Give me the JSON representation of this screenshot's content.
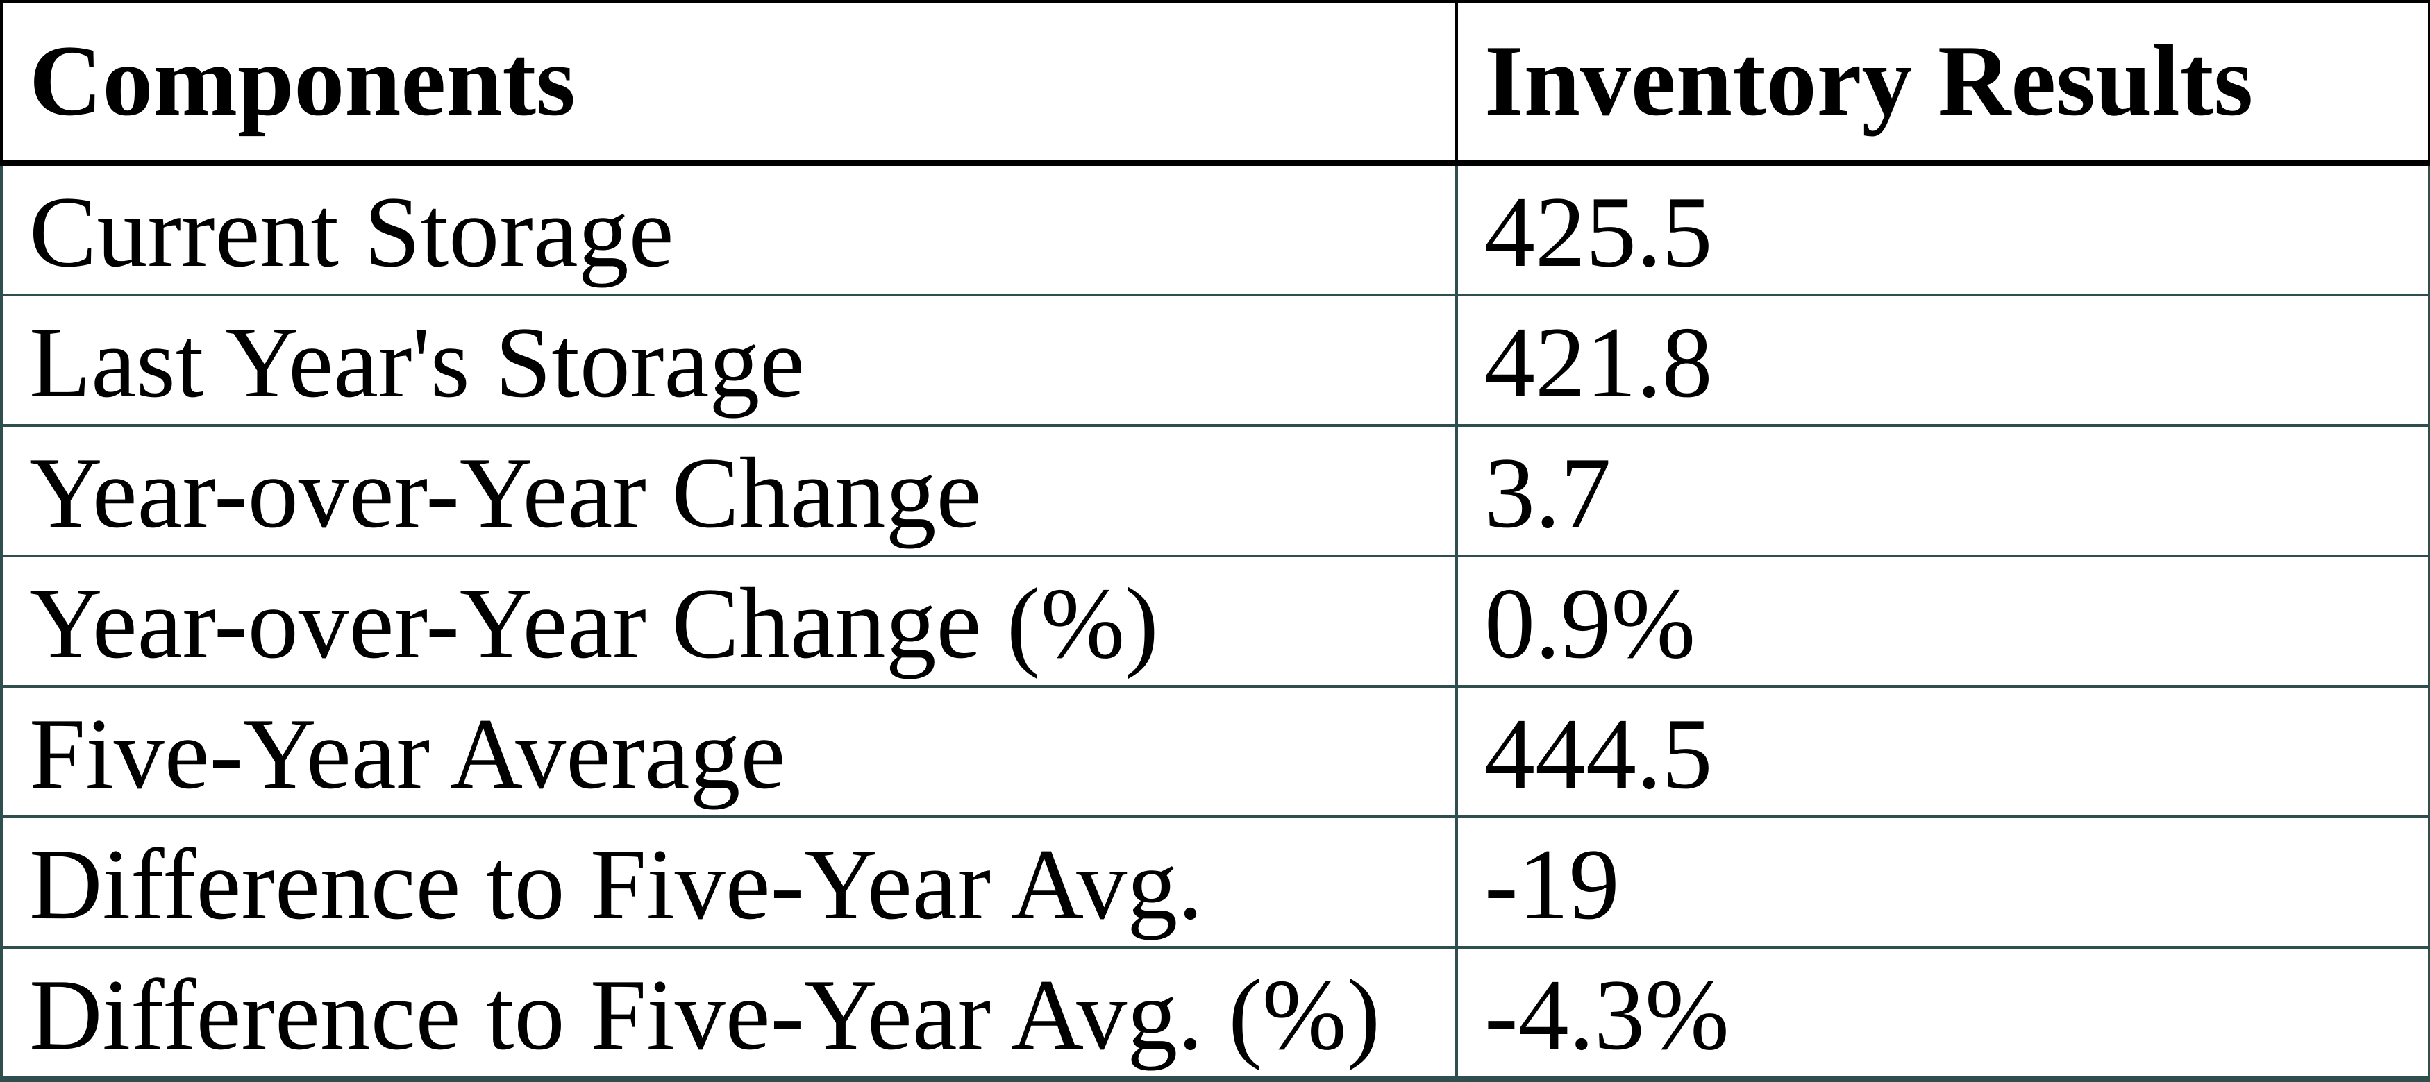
{
  "table": {
    "columns": [
      {
        "label": "Components"
      },
      {
        "label": "Inventory Results"
      }
    ],
    "rows": [
      {
        "label": "Current Storage",
        "value": "425.5"
      },
      {
        "label": "Last Year's Storage",
        "value": "421.8"
      },
      {
        "label": "Year-over-Year Change",
        "value": "3.7"
      },
      {
        "label": "Year-over-Year Change (%)",
        "value": "0.9%"
      },
      {
        "label": "Five-Year Average",
        "value": "444.5"
      },
      {
        "label": "Difference to Five-Year Avg.",
        "value": "-19"
      },
      {
        "label": "Difference to Five-Year Avg. (%)",
        "value": "-4.3%"
      }
    ]
  },
  "colors": {
    "header_border": "#000000",
    "body_border": "#2F4F4F",
    "text": "#000000",
    "background": "#FFFFFF"
  },
  "chart_data": {
    "type": "table",
    "title": "",
    "columns": [
      "Components",
      "Inventory Results"
    ],
    "rows": [
      [
        "Current Storage",
        425.5
      ],
      [
        "Last Year's Storage",
        421.8
      ],
      [
        "Year-over-Year Change",
        3.7
      ],
      [
        "Year-over-Year Change (%)",
        "0.9%"
      ],
      [
        "Five-Year Average",
        444.5
      ],
      [
        "Difference to Five-Year Avg.",
        -19
      ],
      [
        "Difference to Five-Year Avg. (%)",
        "-4.3%"
      ]
    ]
  }
}
